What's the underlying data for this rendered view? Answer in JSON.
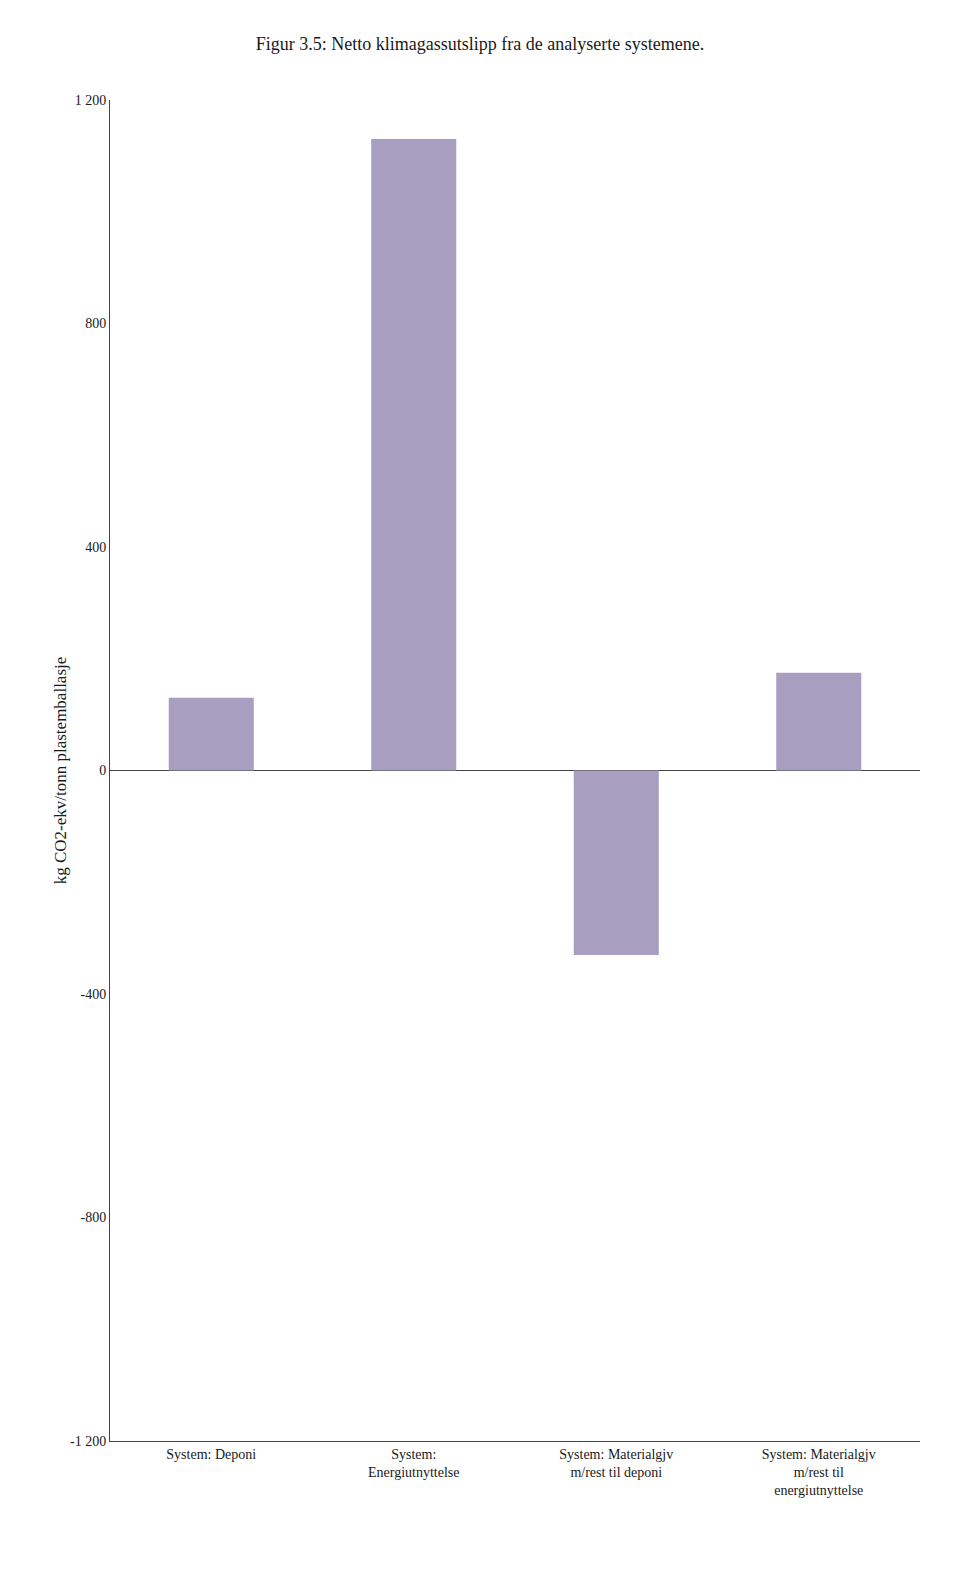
{
  "chart_data": {
    "type": "bar",
    "title": "Figur 3.5: Netto klimagassutslipp fra de analyserte systemene.",
    "categories": [
      "System: Deponi",
      "System:\nEnergiutnyttelse",
      "System: Materialgjv\nm/rest til deponi",
      "System: Materialgjv\nm/rest til\nenergiutnyttelse"
    ],
    "values": [
      130,
      1130,
      -330,
      175
    ],
    "color": "#A89FC0",
    "ylabel": "kg CO2-ekv/tonn plastemballasje",
    "ylim": [
      -1200,
      1200
    ],
    "yticks": [
      {
        "value": -1200,
        "label": "-1 200"
      },
      -800,
      -400,
      0,
      400,
      800,
      {
        "value": 1200,
        "label": "1 200"
      }
    ],
    "grid": false
  }
}
